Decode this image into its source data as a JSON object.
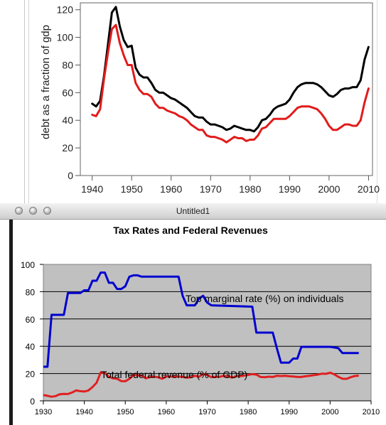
{
  "top_chart": {
    "chart_data": {
      "type": "line",
      "title": "",
      "xlabel": "",
      "ylabel": "debt as a fraction of gdp",
      "xlim": [
        1937,
        2011
      ],
      "ylim": [
        0,
        125
      ],
      "xticks": [
        1940,
        1950,
        1960,
        1970,
        1980,
        1990,
        2000,
        2010
      ],
      "yticks": [
        0,
        20,
        40,
        60,
        80,
        100,
        120
      ],
      "grid": false,
      "series": [
        {
          "color": "#000000",
          "points": [
            [
              1940,
              52
            ],
            [
              1941,
              50
            ],
            [
              1942,
              54
            ],
            [
              1943,
              72
            ],
            [
              1944,
              95
            ],
            [
              1945,
              118
            ],
            [
              1946,
              122
            ],
            [
              1947,
              108
            ],
            [
              1948,
              98
            ],
            [
              1949,
              93
            ],
            [
              1950,
              94
            ],
            [
              1951,
              78
            ],
            [
              1952,
              73
            ],
            [
              1953,
              71
            ],
            [
              1954,
              71
            ],
            [
              1955,
              67
            ],
            [
              1956,
              62
            ],
            [
              1957,
              60
            ],
            [
              1958,
              60
            ],
            [
              1959,
              58
            ],
            [
              1960,
              56
            ],
            [
              1961,
              55
            ],
            [
              1962,
              53
            ],
            [
              1963,
              51
            ],
            [
              1964,
              49
            ],
            [
              1965,
              46
            ],
            [
              1966,
              43
            ],
            [
              1967,
              42
            ],
            [
              1968,
              42
            ],
            [
              1969,
              39
            ],
            [
              1970,
              37
            ],
            [
              1971,
              37
            ],
            [
              1972,
              36
            ],
            [
              1973,
              35
            ],
            [
              1974,
              33
            ],
            [
              1975,
              34
            ],
            [
              1976,
              36
            ],
            [
              1977,
              35
            ],
            [
              1978,
              34
            ],
            [
              1979,
              33
            ],
            [
              1980,
              33
            ],
            [
              1981,
              32
            ],
            [
              1982,
              35
            ],
            [
              1983,
              40
            ],
            [
              1984,
              41
            ],
            [
              1985,
              44
            ],
            [
              1986,
              48
            ],
            [
              1987,
              50
            ],
            [
              1988,
              51
            ],
            [
              1989,
              52
            ],
            [
              1990,
              55
            ],
            [
              1991,
              60
            ],
            [
              1992,
              64
            ],
            [
              1993,
              66
            ],
            [
              1994,
              67
            ],
            [
              1995,
              67
            ],
            [
              1996,
              67
            ],
            [
              1997,
              66
            ],
            [
              1998,
              64
            ],
            [
              1999,
              61
            ],
            [
              2000,
              58
            ],
            [
              2001,
              57
            ],
            [
              2002,
              59
            ],
            [
              2003,
              62
            ],
            [
              2004,
              63
            ],
            [
              2005,
              63
            ],
            [
              2006,
              64
            ],
            [
              2007,
              64
            ],
            [
              2008,
              69
            ],
            [
              2009,
              84
            ],
            [
              2010,
              93
            ]
          ]
        },
        {
          "color": "#e21b1b",
          "points": [
            [
              1940,
              44
            ],
            [
              1941,
              43
            ],
            [
              1942,
              48
            ],
            [
              1943,
              70
            ],
            [
              1944,
              89
            ],
            [
              1945,
              106
            ],
            [
              1946,
              109
            ],
            [
              1947,
              96
            ],
            [
              1948,
              87
            ],
            [
              1949,
              80
            ],
            [
              1950,
              80
            ],
            [
              1951,
              67
            ],
            [
              1952,
              62
            ],
            [
              1953,
              59
            ],
            [
              1954,
              59
            ],
            [
              1955,
              57
            ],
            [
              1956,
              52
            ],
            [
              1957,
              49
            ],
            [
              1958,
              49
            ],
            [
              1959,
              47
            ],
            [
              1960,
              46
            ],
            [
              1961,
              45
            ],
            [
              1962,
              43
            ],
            [
              1963,
              42
            ],
            [
              1964,
              40
            ],
            [
              1965,
              37
            ],
            [
              1966,
              35
            ],
            [
              1967,
              33
            ],
            [
              1968,
              33
            ],
            [
              1969,
              29
            ],
            [
              1970,
              28
            ],
            [
              1971,
              28
            ],
            [
              1972,
              27
            ],
            [
              1973,
              26
            ],
            [
              1974,
              24
            ],
            [
              1975,
              26
            ],
            [
              1976,
              28
            ],
            [
              1977,
              27
            ],
            [
              1978,
              27
            ],
            [
              1979,
              25
            ],
            [
              1980,
              26
            ],
            [
              1981,
              26
            ],
            [
              1982,
              29
            ],
            [
              1983,
              34
            ],
            [
              1984,
              35
            ],
            [
              1985,
              38
            ],
            [
              1986,
              41
            ],
            [
              1987,
              41
            ],
            [
              1988,
              41
            ],
            [
              1989,
              41
            ],
            [
              1990,
              43
            ],
            [
              1991,
              46
            ],
            [
              1992,
              49
            ],
            [
              1993,
              50
            ],
            [
              1994,
              50
            ],
            [
              1995,
              50
            ],
            [
              1996,
              49
            ],
            [
              1997,
              48
            ],
            [
              1998,
              45
            ],
            [
              1999,
              41
            ],
            [
              2000,
              36
            ],
            [
              2001,
              33
            ],
            [
              2002,
              33
            ],
            [
              2003,
              35
            ],
            [
              2004,
              37
            ],
            [
              2005,
              37
            ],
            [
              2006,
              36
            ],
            [
              2007,
              36
            ],
            [
              2008,
              40
            ],
            [
              2009,
              53
            ],
            [
              2010,
              63
            ]
          ]
        }
      ]
    }
  },
  "window": {
    "title": "Untitled1"
  },
  "bottom_chart": {
    "chart_data": {
      "type": "line",
      "title": "Tax Rates and Federal Revenues",
      "xlabel": "",
      "ylabel": "",
      "xlim": [
        1930,
        2010
      ],
      "ylim": [
        0,
        100
      ],
      "xticks": [
        1930,
        1940,
        1950,
        1960,
        1970,
        1980,
        1990,
        2000,
        2010
      ],
      "yticks": [
        0,
        20,
        40,
        60,
        80,
        100
      ],
      "grid": true,
      "background": "#c0c0c0",
      "series": [
        {
          "label": "Top marginal rate (%) on individuals",
          "color": "#0000d0",
          "points": [
            [
              1930,
              25
            ],
            [
              1931,
              25
            ],
            [
              1932,
              63
            ],
            [
              1935,
              63
            ],
            [
              1936,
              79
            ],
            [
              1939,
              79
            ],
            [
              1940,
              81
            ],
            [
              1941,
              81
            ],
            [
              1942,
              88
            ],
            [
              1943,
              88
            ],
            [
              1944,
              94
            ],
            [
              1945,
              94
            ],
            [
              1946,
              86.5
            ],
            [
              1947,
              86.5
            ],
            [
              1948,
              82
            ],
            [
              1949,
              82
            ],
            [
              1950,
              84
            ],
            [
              1951,
              91
            ],
            [
              1952,
              92
            ],
            [
              1953,
              92
            ],
            [
              1954,
              91
            ],
            [
              1963,
              91
            ],
            [
              1964,
              77
            ],
            [
              1965,
              70
            ],
            [
              1967,
              70
            ],
            [
              1968,
              75
            ],
            [
              1969,
              77
            ],
            [
              1970,
              72
            ],
            [
              1971,
              70
            ],
            [
              1981,
              69
            ],
            [
              1982,
              50
            ],
            [
              1986,
              50
            ],
            [
              1987,
              38.5
            ],
            [
              1988,
              28
            ],
            [
              1990,
              28
            ],
            [
              1991,
              31
            ],
            [
              1992,
              31
            ],
            [
              1993,
              39.6
            ],
            [
              2000,
              39.6
            ],
            [
              2001,
              39.1
            ],
            [
              2002,
              38.6
            ],
            [
              2003,
              35
            ],
            [
              2007,
              35
            ]
          ]
        },
        {
          "label": "Total federal revenue (% of GDP)",
          "color": "#e02020",
          "points": [
            [
              1930,
              4.2
            ],
            [
              1931,
              3.7
            ],
            [
              1932,
              3.0
            ],
            [
              1933,
              3.5
            ],
            [
              1934,
              4.8
            ],
            [
              1935,
              5.1
            ],
            [
              1936,
              5.0
            ],
            [
              1937,
              6.1
            ],
            [
              1938,
              7.6
            ],
            [
              1939,
              7.1
            ],
            [
              1940,
              6.8
            ],
            [
              1941,
              7.6
            ],
            [
              1942,
              10.1
            ],
            [
              1943,
              13.3
            ],
            [
              1944,
              20.9
            ],
            [
              1945,
              20.4
            ],
            [
              1946,
              17.6
            ],
            [
              1947,
              16.5
            ],
            [
              1948,
              16.2
            ],
            [
              1949,
              14.5
            ],
            [
              1950,
              14.4
            ],
            [
              1951,
              16.1
            ],
            [
              1952,
              19.0
            ],
            [
              1953,
              18.7
            ],
            [
              1954,
              18.5
            ],
            [
              1955,
              16.5
            ],
            [
              1956,
              17.5
            ],
            [
              1957,
              17.7
            ],
            [
              1958,
              17.3
            ],
            [
              1959,
              16.2
            ],
            [
              1960,
              17.8
            ],
            [
              1961,
              17.8
            ],
            [
              1962,
              17.6
            ],
            [
              1963,
              17.8
            ],
            [
              1964,
              17.6
            ],
            [
              1965,
              17.0
            ],
            [
              1966,
              17.3
            ],
            [
              1967,
              18.4
            ],
            [
              1968,
              17.6
            ],
            [
              1969,
              19.7
            ],
            [
              1970,
              19.0
            ],
            [
              1971,
              17.3
            ],
            [
              1972,
              17.6
            ],
            [
              1973,
              17.6
            ],
            [
              1974,
              18.3
            ],
            [
              1975,
              17.9
            ],
            [
              1976,
              17.1
            ],
            [
              1977,
              18.0
            ],
            [
              1978,
              18.0
            ],
            [
              1979,
              18.5
            ],
            [
              1980,
              19.0
            ],
            [
              1981,
              19.6
            ],
            [
              1982,
              19.2
            ],
            [
              1983,
              17.5
            ],
            [
              1984,
              17.3
            ],
            [
              1985,
              17.7
            ],
            [
              1986,
              17.5
            ],
            [
              1987,
              18.4
            ],
            [
              1988,
              18.2
            ],
            [
              1989,
              18.4
            ],
            [
              1990,
              18.0
            ],
            [
              1991,
              17.8
            ],
            [
              1992,
              17.5
            ],
            [
              1993,
              17.5
            ],
            [
              1994,
              18.0
            ],
            [
              1995,
              18.4
            ],
            [
              1996,
              18.8
            ],
            [
              1997,
              19.2
            ],
            [
              1998,
              19.9
            ],
            [
              1999,
              19.8
            ],
            [
              2000,
              20.6
            ],
            [
              2001,
              19.5
            ],
            [
              2002,
              17.6
            ],
            [
              2003,
              16.2
            ],
            [
              2004,
              16.1
            ],
            [
              2005,
              17.3
            ],
            [
              2006,
              18.2
            ],
            [
              2007,
              18.5
            ]
          ]
        }
      ]
    }
  }
}
